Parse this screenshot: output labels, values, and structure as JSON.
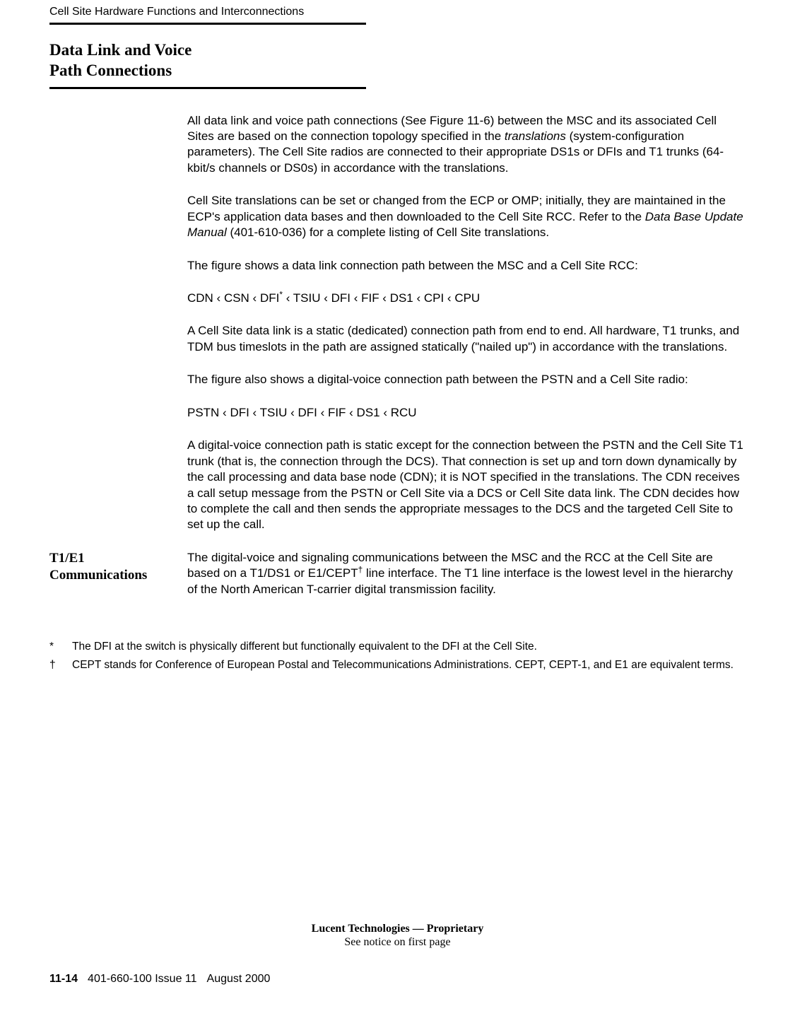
{
  "header": {
    "running": "Cell Site Hardware Functions and Interconnections"
  },
  "section": {
    "title_l1": "Data Link and Voice",
    "title_l2": "Path Connections"
  },
  "paras": {
    "p1a": "All data link and voice path connections (See Figure 11-6) between the MSC and its associated Cell Sites are based on the connection topology specified in the ",
    "p1_ital": "translations",
    "p1b": " (system-configuration parameters). The Cell Site radios are connected to their appropriate DS1s or DFIs and T1 trunks (64-kbit/s channels or DS0s) in accordance with the translations.",
    "p2a": "Cell Site translations can be set or changed from the ECP or OMP; initially, they are maintained in the ECP's application data bases and then downloaded to the Cell Site RCC. Refer to the ",
    "p2_ital": "Data Base Update Manual",
    "p2b": " (401-610-036) for a complete listing of Cell Site translations.",
    "p3": "The figure shows a data link connection path between the MSC and a Cell Site RCC:",
    "p4a": "CDN ‹ CSN ‹ DFI",
    "p4_sup": "*",
    "p4b": " ‹ TSIU ‹ DFI ‹ FIF ‹ DS1 ‹ CPI ‹ CPU",
    "p5": "A Cell Site data link is a static (dedicated) connection path from end to end. All hardware, T1 trunks, and TDM bus timeslots in the path are assigned statically (\"nailed up\") in accordance with the translations.",
    "p6": "The figure also shows a digital-voice connection path between the PSTN and a Cell Site radio:",
    "p7": "PSTN ‹ DFI ‹ TSIU ‹ DFI ‹ FIF ‹ DS1 ‹ RCU",
    "p8": "A digital-voice connection path is static except for the connection between the PSTN and the Cell Site T1 trunk (that is, the connection through the DCS). That connection is set up and torn down dynamically by the call processing and data base node (CDN); it is NOT specified in the translations. The CDN receives a call setup message from the PSTN or Cell Site via a DCS or Cell Site data link. The CDN decides how to complete the call and then sends the appropriate messages to the DCS and the targeted Cell Site to set up the call.",
    "t1_side_l1": "T1/E1",
    "t1_side_l2": "Communications",
    "t1_a": "The digital-voice and signaling communications between the MSC and the RCC at the Cell Site are based on a T1/DS1 or E1/CEPT",
    "t1_sup": "†",
    "t1_b": " line interface. The T1 line interface is the lowest level in the hierarchy of the North American T-carrier digital transmission facility."
  },
  "footnotes": {
    "f1_mark": "*",
    "f1_text": "The DFI at the switch is physically different but functionally equivalent to the DFI at the Cell Site.",
    "f2_mark": "†",
    "f2_text": "CEPT stands for Conference of European Postal and Telecommunications Administrations. CEPT, CEPT-1, and E1 are equivalent terms."
  },
  "footer": {
    "prop": "Lucent Technologies — Proprietary",
    "prop_sub": "See notice on first page",
    "page_num": "11-14",
    "doc_id": "401-660-100 Issue 11",
    "date": "August 2000"
  }
}
